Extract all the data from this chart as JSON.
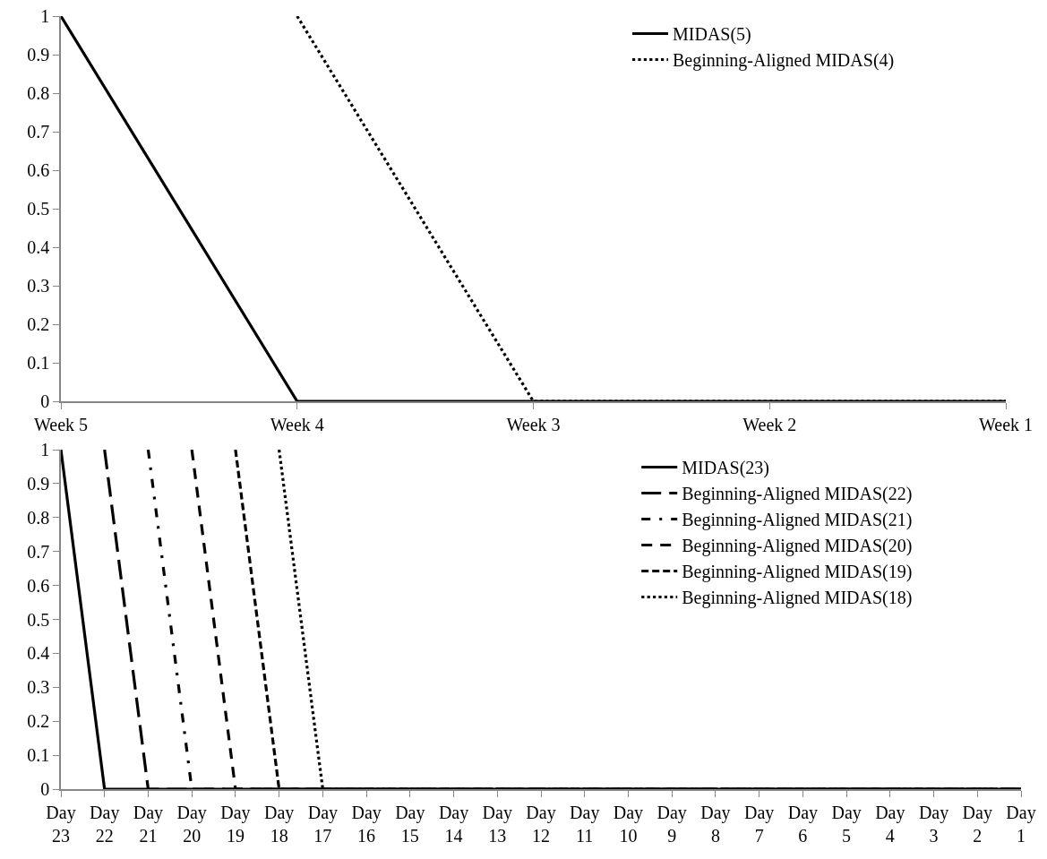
{
  "chart_data": [
    {
      "type": "line",
      "categories": [
        "Week 5",
        "Week 4",
        "Week 3",
        "Week 2",
        "Week 1"
      ],
      "ylim": [
        0,
        1
      ],
      "yticks": [
        0,
        0.1,
        0.2,
        0.3,
        0.4,
        0.5,
        0.6,
        0.7,
        0.8,
        0.9,
        1
      ],
      "grid": false,
      "legend": "top right",
      "marker": "none",
      "series": [
        {
          "name": "MIDAS(5)",
          "color": "#000000",
          "line_style": "solid",
          "values": [
            1,
            0,
            0,
            0,
            0
          ]
        },
        {
          "name": "Beginning-Aligned MIDAS(4)",
          "color": "#000000",
          "line_style": "dotted",
          "values": [
            null,
            1,
            0,
            0,
            0
          ]
        }
      ]
    },
    {
      "type": "line",
      "categories": [
        "Day 23",
        "Day 22",
        "Day 21",
        "Day 20",
        "Day 19",
        "Day 18",
        "Day 17",
        "Day 16",
        "Day 15",
        "Day 14",
        "Day 13",
        "Day 12",
        "Day 11",
        "Day 10",
        "Day 9",
        "Day 8",
        "Day 7",
        "Day 6",
        "Day 5",
        "Day 4",
        "Day 3",
        "Day 2",
        "Day 1"
      ],
      "ylim": [
        0,
        1
      ],
      "yticks": [
        0,
        0.1,
        0.2,
        0.3,
        0.4,
        0.5,
        0.6,
        0.7,
        0.8,
        0.9,
        1
      ],
      "grid": false,
      "legend": "top right",
      "marker": "none",
      "series": [
        {
          "name": "MIDAS(23)",
          "color": "#000000",
          "line_style": "solid",
          "values": [
            1,
            0,
            0,
            0,
            0,
            0,
            0,
            0,
            0,
            0,
            0,
            0,
            0,
            0,
            0,
            0,
            0,
            0,
            0,
            0,
            0,
            0,
            0
          ]
        },
        {
          "name": "Beginning-Aligned MIDAS(22)",
          "color": "#000000",
          "line_style": "longdash",
          "values": [
            null,
            1,
            0,
            0,
            0,
            0,
            0,
            0,
            0,
            0,
            0,
            0,
            0,
            0,
            0,
            0,
            0,
            0,
            0,
            0,
            0,
            0,
            0
          ]
        },
        {
          "name": "Beginning-Aligned MIDAS(21)",
          "color": "#000000",
          "line_style": "dashdot",
          "values": [
            null,
            null,
            1,
            0,
            0,
            0,
            0,
            0,
            0,
            0,
            0,
            0,
            0,
            0,
            0,
            0,
            0,
            0,
            0,
            0,
            0,
            0,
            0
          ]
        },
        {
          "name": "Beginning-Aligned MIDAS(20)",
          "color": "#000000",
          "line_style": "dashed",
          "values": [
            null,
            null,
            null,
            1,
            0,
            0,
            0,
            0,
            0,
            0,
            0,
            0,
            0,
            0,
            0,
            0,
            0,
            0,
            0,
            0,
            0,
            0,
            0
          ]
        },
        {
          "name": "Beginning-Aligned MIDAS(19)",
          "color": "#000000",
          "line_style": "shortdash",
          "values": [
            null,
            null,
            null,
            null,
            1,
            0,
            0,
            0,
            0,
            0,
            0,
            0,
            0,
            0,
            0,
            0,
            0,
            0,
            0,
            0,
            0,
            0,
            0
          ]
        },
        {
          "name": "Beginning-Aligned MIDAS(18)",
          "color": "#000000",
          "line_style": "dotted",
          "values": [
            null,
            null,
            null,
            null,
            null,
            1,
            0,
            0,
            0,
            0,
            0,
            0,
            0,
            0,
            0,
            0,
            0,
            0,
            0,
            0,
            0,
            0,
            0
          ]
        }
      ]
    }
  ]
}
